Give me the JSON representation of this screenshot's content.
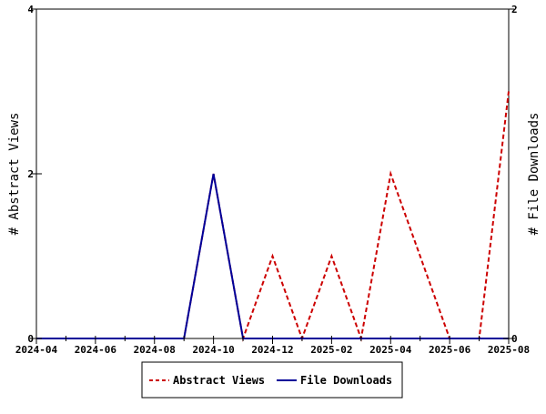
{
  "chart_data": {
    "type": "line",
    "title": "",
    "ylabel_left": "# Abstract Views",
    "ylabel_right": "# File Downloads",
    "x_tick_labels": [
      "2024-04",
      "2024-06",
      "2024-08",
      "2024-10",
      "2024-12",
      "2025-02",
      "2025-04",
      "2025-06",
      "2025-08"
    ],
    "y_left": {
      "range": [
        0,
        4
      ],
      "ticks": [
        "0",
        "2",
        "4"
      ]
    },
    "y_right": {
      "range": [
        0,
        2
      ],
      "ticks": [
        "0",
        "2"
      ]
    },
    "x": [
      "2024-04",
      "2024-05",
      "2024-06",
      "2024-07",
      "2024-08",
      "2024-09",
      "2024-10",
      "2024-11",
      "2024-12",
      "2025-01",
      "2025-02",
      "2025-03",
      "2025-04",
      "2025-05",
      "2025-06",
      "2025-07",
      "2025-08"
    ],
    "series": [
      {
        "name": "Abstract Views",
        "axis": "left",
        "color": "#cc0000",
        "dashed": true,
        "values": [
          0,
          0,
          0,
          0,
          0,
          0,
          2,
          0,
          1,
          0,
          1,
          0,
          2,
          1,
          0,
          0,
          3
        ]
      },
      {
        "name": "File Downloads",
        "axis": "right",
        "color": "#000099",
        "dashed": false,
        "values": [
          0,
          0,
          0,
          0,
          0,
          0,
          1,
          0,
          0,
          0,
          0,
          0,
          0,
          0,
          0,
          0,
          0
        ]
      }
    ],
    "grid": false,
    "legend_position": "bottom"
  }
}
